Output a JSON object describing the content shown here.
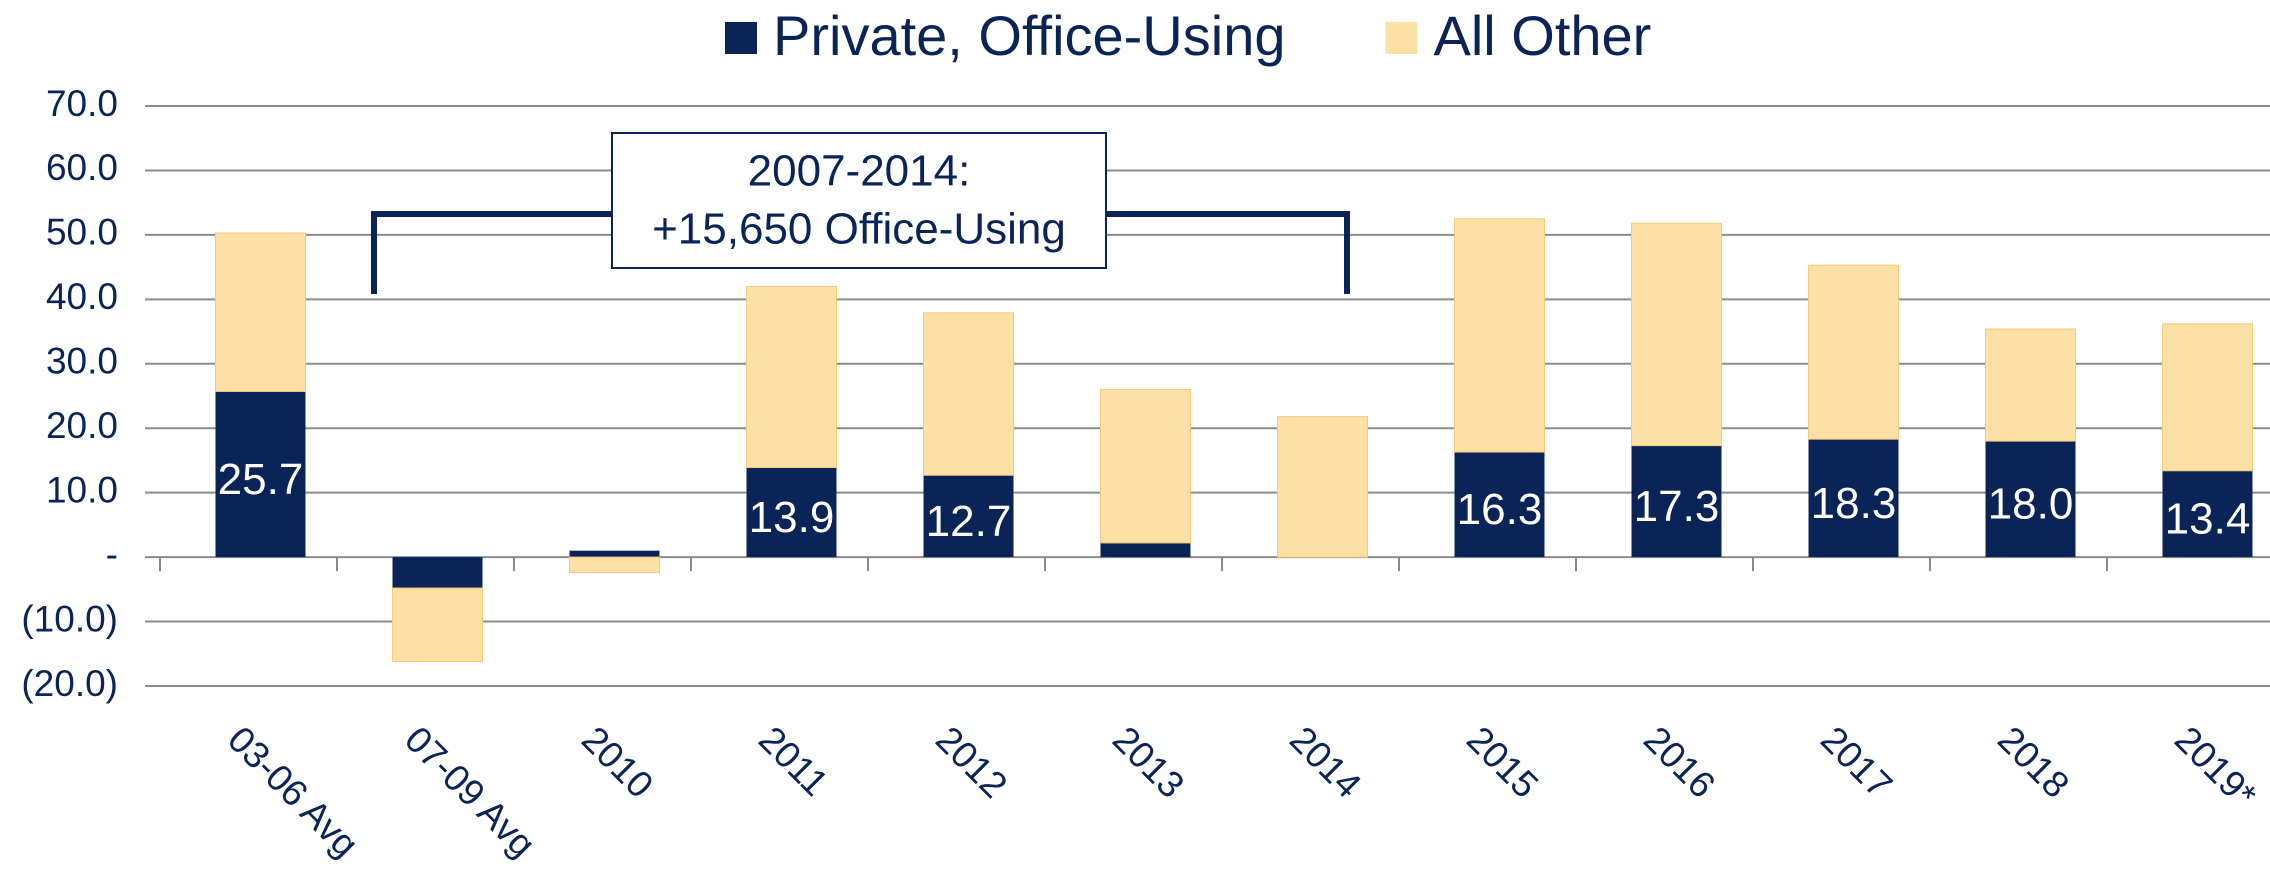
{
  "chart_data": {
    "type": "stacked-bar",
    "categories": [
      "03-06 Avg",
      "07-09 Avg",
      "2010",
      "2011",
      "2012",
      "2013",
      "2014",
      "2015",
      "2016",
      "2017",
      "2018",
      "2019*"
    ],
    "series": [
      {
        "name": "Private, Office-Using",
        "color": "#0a2458",
        "values": [
          25.7,
          -4.8,
          1.0,
          13.9,
          12.7,
          2.2,
          0,
          16.3,
          17.3,
          18.3,
          18.0,
          13.4
        ],
        "value_labels": [
          "25.7",
          null,
          null,
          "13.9",
          "12.7",
          null,
          null,
          "16.3",
          "17.3",
          "18.3",
          "18.0",
          "13.4"
        ]
      },
      {
        "name": "All Other",
        "color": "#fde0a6",
        "values": [
          24.6,
          -11.4,
          -2.4,
          28.1,
          25.2,
          23.8,
          21.8,
          36.2,
          34.5,
          27.0,
          17.4,
          22.8
        ]
      }
    ],
    "ylim": [
      -20,
      70
    ],
    "yticks": [
      {
        "value": -20,
        "label": "(20.0)"
      },
      {
        "value": -10,
        "label": "(10.0)"
      },
      {
        "value": 0,
        "label": "-"
      },
      {
        "value": 10,
        "label": "10.0"
      },
      {
        "value": 20,
        "label": "20.0"
      },
      {
        "value": 30,
        "label": "30.0"
      },
      {
        "value": 40,
        "label": "40.0"
      },
      {
        "value": 50,
        "label": "50.0"
      },
      {
        "value": 60,
        "label": "60.0"
      },
      {
        "value": 70,
        "label": "70.0"
      }
    ],
    "grid": true,
    "legend": "top",
    "annotation": [
      "2007-2014:",
      "+15,650 Office-Using"
    ]
  }
}
